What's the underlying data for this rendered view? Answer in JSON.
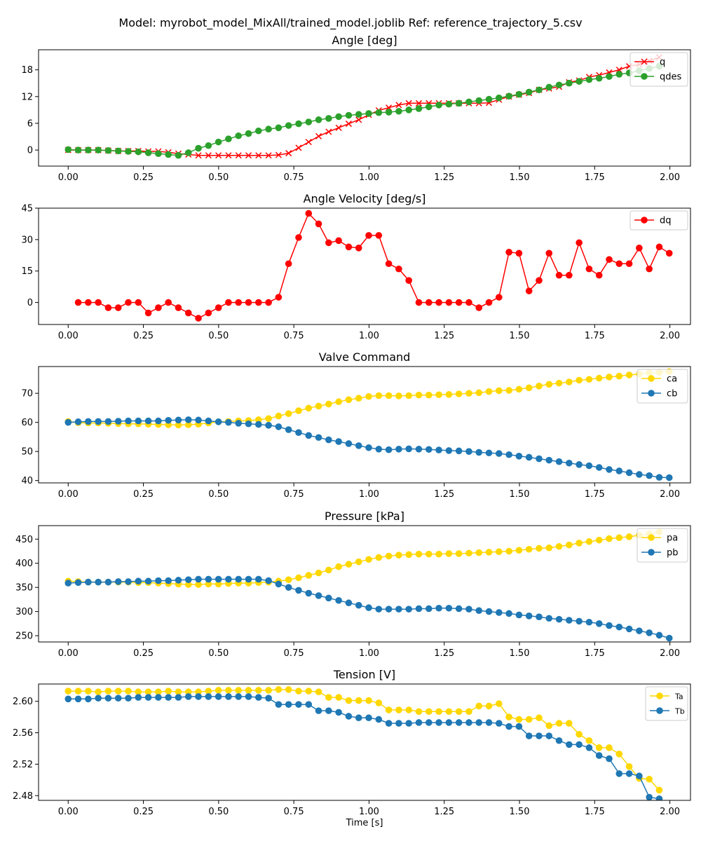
{
  "figure_title": "Model: myrobot_model_MixAll/trained_model.joblib  Ref: reference_trajectory_5.csv",
  "x_axis_label": "Time [s]",
  "chart_data": [
    {
      "type": "line",
      "title": "Angle [deg]",
      "xlabel": "",
      "ylabel": "",
      "xlim": [
        -0.0985,
        2.0685
      ],
      "ylim": [
        -3.6,
        22.5
      ],
      "xticks": [
        "0.00",
        "0.25",
        "0.50",
        "0.75",
        "1.00",
        "1.25",
        "1.50",
        "1.75",
        "2.00"
      ],
      "yticks": [
        "0",
        "6",
        "12",
        "18"
      ],
      "grid": false,
      "legend": "top-right",
      "series": [
        {
          "name": "q",
          "color": "#ff0000",
          "marker": "x",
          "x_start": 0.0,
          "x_step": 0.0333,
          "values": [
            0,
            0,
            0,
            0,
            -0.1,
            -0.2,
            -0.2,
            -0.2,
            -0.3,
            -0.3,
            -0.5,
            -0.8,
            -1.0,
            -1.2,
            -1.2,
            -1.2,
            -1.2,
            -1.2,
            -1.2,
            -1.2,
            -1.2,
            -1.1,
            -0.7,
            0.5,
            1.8,
            3.1,
            4.1,
            5.0,
            5.9,
            6.8,
            7.9,
            8.9,
            9.5,
            10.1,
            10.5,
            10.5,
            10.5,
            10.5,
            10.5,
            10.5,
            10.5,
            10.5,
            10.6,
            11.3,
            12.0,
            12.4,
            12.8,
            13.5,
            13.8,
            14.2,
            15.2,
            15.6,
            16.4,
            16.8,
            17.4,
            18.0,
            18.8,
            19.2,
            20.0,
            20.8
          ]
        },
        {
          "name": "qdes",
          "color": "#2ca02c",
          "marker": "o",
          "x_start": 0.0,
          "x_step": 0.0333,
          "values": [
            0.1,
            0,
            0,
            0,
            -0.1,
            -0.2,
            -0.3,
            -0.4,
            -0.6,
            -0.8,
            -1.0,
            -1.2,
            -0.6,
            0.4,
            1.0,
            1.8,
            2.5,
            3.2,
            3.7,
            4.3,
            4.7,
            5.0,
            5.5,
            5.9,
            6.3,
            6.8,
            7.1,
            7.5,
            7.8,
            8.0,
            8.2,
            8.4,
            8.5,
            8.7,
            9.0,
            9.3,
            9.7,
            10.1,
            10.3,
            10.5,
            10.8,
            11.1,
            11.4,
            11.7,
            12.1,
            12.5,
            13.0,
            13.5,
            14.1,
            14.6,
            15.0,
            15.4,
            15.8,
            16.1,
            16.5,
            17.0,
            17.3,
            17.8,
            18.3,
            18.8
          ]
        }
      ]
    },
    {
      "type": "line",
      "title": "Angle Velocity [deg/s]",
      "xlabel": "",
      "ylabel": "",
      "xlim": [
        -0.0985,
        2.0685
      ],
      "ylim": [
        -10.5,
        45
      ],
      "xticks": [
        "0.00",
        "0.25",
        "0.50",
        "0.75",
        "1.00",
        "1.25",
        "1.50",
        "1.75",
        "2.00"
      ],
      "yticks": [
        "0",
        "15",
        "30",
        "45"
      ],
      "grid": false,
      "legend": "top-right",
      "series": [
        {
          "name": "dq",
          "color": "#ff0000",
          "marker": "o",
          "x_start": 0.0333,
          "x_step": 0.0333,
          "values": [
            0,
            0,
            0,
            -2.5,
            -2.5,
            0,
            0,
            -5,
            -2.5,
            0,
            -2.5,
            -5,
            -7.5,
            -5,
            -2.5,
            0,
            0,
            0,
            0,
            0,
            2.5,
            18.5,
            31,
            42.5,
            37.5,
            28.5,
            29.5,
            26.5,
            26,
            32,
            32,
            18.5,
            16,
            10.5,
            0,
            0,
            0,
            0,
            0,
            0,
            -2.5,
            0,
            2.5,
            24,
            23.5,
            5.5,
            10.5,
            23.5,
            13,
            13,
            28.5,
            16,
            13,
            20.5,
            18.5,
            18.5,
            26,
            16,
            26.5,
            23.5
          ]
        }
      ]
    },
    {
      "type": "line",
      "title": "Valve Command",
      "xlabel": "",
      "ylabel": "",
      "xlim": [
        -0.0985,
        2.0685
      ],
      "ylim": [
        39.2,
        79.2
      ],
      "xticks": [
        "0.00",
        "0.25",
        "0.50",
        "0.75",
        "1.00",
        "1.25",
        "1.50",
        "1.75",
        "2.00"
      ],
      "yticks": [
        "40",
        "50",
        "60",
        "70"
      ],
      "grid": false,
      "legend": "top-right",
      "series": [
        {
          "name": "ca",
          "color": "#ffd700",
          "marker": "o",
          "x_start": 0.0,
          "x_step": 0.0333,
          "values": [
            60.3,
            59.9,
            59.8,
            59.8,
            59.7,
            59.6,
            59.5,
            59.5,
            59.4,
            59.3,
            59.2,
            59.1,
            59.2,
            59.4,
            59.8,
            60.2,
            60.3,
            60.5,
            60.6,
            60.9,
            61.3,
            62.2,
            63,
            64,
            64.9,
            65.6,
            66.3,
            67.1,
            67.8,
            68.3,
            68.9,
            69.2,
            69.2,
            69.1,
            69.2,
            69.4,
            69.4,
            69.5,
            69.6,
            69.8,
            70,
            70.2,
            70.6,
            70.9,
            71,
            71.4,
            71.9,
            72.5,
            73.1,
            73.5,
            73.9,
            74.5,
            74.8,
            75.2,
            75.6,
            75.9,
            76.3,
            76.6,
            77,
            77.2,
            77.5
          ]
        },
        {
          "name": "cb",
          "color": "#1f77b4",
          "marker": "o",
          "x_start": 0.0,
          "x_step": 0.0333,
          "values": [
            60,
            60.2,
            60.3,
            60.3,
            60.3,
            60.4,
            60.5,
            60.5,
            60.5,
            60.5,
            60.7,
            60.8,
            60.9,
            60.8,
            60.5,
            60.2,
            60,
            59.7,
            59.5,
            59.3,
            59,
            58.5,
            57.5,
            56.5,
            55.5,
            54.8,
            54,
            53.4,
            52.7,
            52,
            51.3,
            50.8,
            50.6,
            50.8,
            50.9,
            50.8,
            50.7,
            50.5,
            50.3,
            50.2,
            50,
            49.7,
            49.5,
            49.3,
            48.9,
            48.4,
            48,
            47.5,
            47,
            46.5,
            46,
            45.5,
            45.1,
            44.5,
            43.8,
            43.3,
            42.7,
            42.1,
            41.7,
            41.1,
            41
          ]
        }
      ]
    },
    {
      "type": "line",
      "title": "Pressure [kPa]",
      "xlabel": "",
      "ylabel": "",
      "xlim": [
        -0.0985,
        2.0685
      ],
      "ylim": [
        237,
        478
      ],
      "xticks": [
        "0.00",
        "0.25",
        "0.50",
        "0.75",
        "1.00",
        "1.25",
        "1.50",
        "1.75",
        "2.00"
      ],
      "yticks": [
        "250",
        "300",
        "350",
        "400",
        "450"
      ],
      "grid": false,
      "legend": "top-right",
      "series": [
        {
          "name": "pa",
          "color": "#ffd700",
          "marker": "o",
          "x_start": 0.0,
          "x_step": 0.0333,
          "values": [
            363,
            362,
            361,
            361,
            361,
            361,
            361,
            360,
            360,
            359,
            358,
            357,
            356,
            356,
            357,
            357,
            358,
            359,
            359,
            360,
            361,
            363,
            366,
            370,
            375,
            380,
            386,
            393,
            398,
            403,
            408,
            412,
            415,
            417,
            418,
            419,
            419,
            419,
            420,
            420,
            421,
            422,
            423,
            424,
            425,
            427,
            429,
            431,
            432,
            435,
            438,
            442,
            445,
            448,
            451,
            453,
            455,
            458,
            461,
            465
          ]
        },
        {
          "name": "pb",
          "color": "#1f77b4",
          "marker": "o",
          "x_start": 0.0,
          "x_step": 0.0333,
          "values": [
            359,
            360,
            361,
            361,
            361,
            362,
            362,
            363,
            363,
            364,
            364,
            365,
            366,
            367,
            367,
            367,
            367,
            367,
            367,
            367,
            364,
            357,
            350,
            344,
            338,
            333,
            328,
            323,
            318,
            313,
            308,
            305,
            305,
            305,
            305,
            306,
            306,
            307,
            307,
            306,
            305,
            302,
            300,
            298,
            296,
            293,
            291,
            289,
            286,
            284,
            282,
            280,
            278,
            275,
            271,
            268,
            264,
            260,
            256,
            251,
            245
          ]
        }
      ]
    },
    {
      "type": "line",
      "title": "Tension [V]",
      "xlabel": "Time [s]",
      "ylabel": "",
      "xlim": [
        -0.0985,
        2.0685
      ],
      "ylim": [
        2.474,
        2.622
      ],
      "xticks": [
        "0.00",
        "0.25",
        "0.50",
        "0.75",
        "1.00",
        "1.25",
        "1.50",
        "1.75",
        "2.00"
      ],
      "yticks": [
        "2.48",
        "2.52",
        "2.56",
        "2.60"
      ],
      "grid": false,
      "legend": "top-right",
      "series": [
        {
          "name": "Ta",
          "color": "#ffd700",
          "marker": "o",
          "x_start": 0.0,
          "x_step": 0.0333,
          "values": [
            2.613,
            2.613,
            2.613,
            2.612,
            2.613,
            2.613,
            2.613,
            2.612,
            2.612,
            2.612,
            2.613,
            2.612,
            2.612,
            2.612,
            2.613,
            2.614,
            2.614,
            2.614,
            2.614,
            2.614,
            2.614,
            2.615,
            2.615,
            2.613,
            2.613,
            2.612,
            2.605,
            2.605,
            2.601,
            2.601,
            2.601,
            2.598,
            2.589,
            2.589,
            2.589,
            2.587,
            2.587,
            2.587,
            2.587,
            2.587,
            2.587,
            2.594,
            2.594,
            2.597,
            2.58,
            2.577,
            2.577,
            2.579,
            2.569,
            2.572,
            2.572,
            2.558,
            2.55,
            2.541,
            2.541,
            2.533,
            2.517,
            2.502,
            2.501,
            2.487
          ]
        },
        {
          "name": "Tb",
          "color": "#1f77b4",
          "marker": "o",
          "x_start": 0.0,
          "x_step": 0.0333,
          "values": [
            2.603,
            2.603,
            2.603,
            2.604,
            2.604,
            2.604,
            2.604,
            2.605,
            2.605,
            2.605,
            2.605,
            2.605,
            2.606,
            2.606,
            2.606,
            2.606,
            2.606,
            2.606,
            2.606,
            2.605,
            2.604,
            2.596,
            2.596,
            2.596,
            2.596,
            2.588,
            2.588,
            2.586,
            2.581,
            2.579,
            2.579,
            2.577,
            2.572,
            2.572,
            2.572,
            2.573,
            2.573,
            2.573,
            2.573,
            2.573,
            2.573,
            2.573,
            2.573,
            2.572,
            2.568,
            2.568,
            2.556,
            2.556,
            2.556,
            2.55,
            2.545,
            2.545,
            2.541,
            2.531,
            2.527,
            2.508,
            2.508,
            2.505,
            2.478,
            2.476
          ]
        }
      ]
    }
  ]
}
